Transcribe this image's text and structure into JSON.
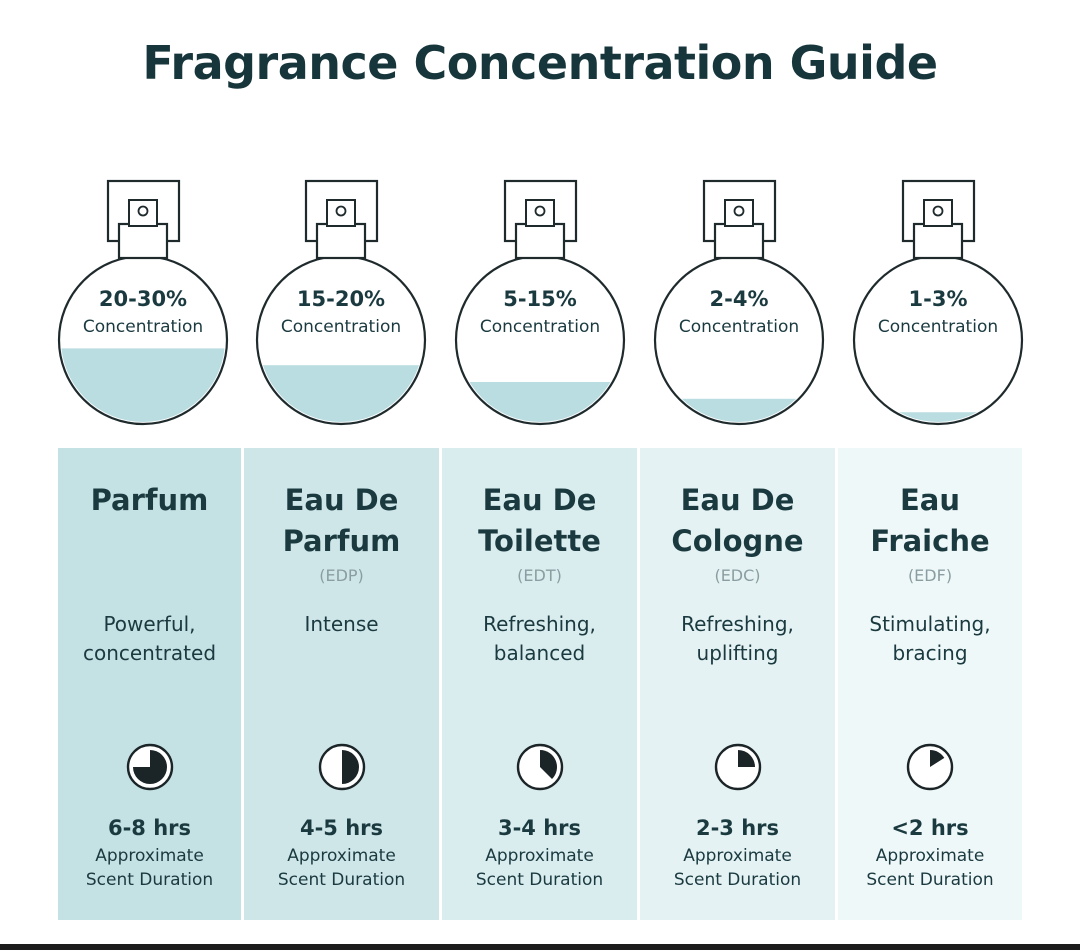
{
  "title": "Fragrance Concentration Guide",
  "colors": {
    "liquid": "#b9dde1",
    "bottle_stroke": "#1f2a2d",
    "panels": [
      "#c4e1e4",
      "#cfe6e9",
      "#d9ecee",
      "#e4f2f3",
      "#eff8f9"
    ]
  },
  "items": [
    {
      "concentration": "20-30%",
      "concentration_label": "Concentration",
      "fill_level": 0.45,
      "name_line1": "Parfum",
      "name_line2": "",
      "abbr": "",
      "desc_line1": "Powerful,",
      "desc_line2": "concentrated",
      "clock_fraction": 0.75,
      "clock_icon": "clock-icon",
      "hours": "6-8 hrs",
      "duration_line1": "Approximate",
      "duration_line2": "Scent Duration"
    },
    {
      "concentration": "15-20%",
      "concentration_label": "Concentration",
      "fill_level": 0.35,
      "name_line1": "Eau De",
      "name_line2": "Parfum",
      "abbr": "(EDP)",
      "desc_line1": "Intense",
      "desc_line2": "",
      "clock_fraction": 0.5,
      "clock_icon": "clock-icon",
      "hours": "4-5 hrs",
      "duration_line1": "Approximate",
      "duration_line2": "Scent Duration"
    },
    {
      "concentration": "5-15%",
      "concentration_label": "Concentration",
      "fill_level": 0.25,
      "name_line1": "Eau De",
      "name_line2": "Toilette",
      "abbr": "(EDT)",
      "desc_line1": "Refreshing,",
      "desc_line2": "balanced",
      "clock_fraction": 0.375,
      "clock_icon": "clock-icon",
      "hours": "3-4 hrs",
      "duration_line1": "Approximate",
      "duration_line2": "Scent Duration"
    },
    {
      "concentration": "2-4%",
      "concentration_label": "Concentration",
      "fill_level": 0.15,
      "name_line1": "Eau De",
      "name_line2": "Cologne",
      "abbr": "(EDC)",
      "desc_line1": "Refreshing,",
      "desc_line2": "uplifting",
      "clock_fraction": 0.25,
      "clock_icon": "clock-icon",
      "hours": "2-3 hrs",
      "duration_line1": "Approximate",
      "duration_line2": "Scent Duration"
    },
    {
      "concentration": "1-3%",
      "concentration_label": "Concentration",
      "fill_level": 0.07,
      "name_line1": "Eau",
      "name_line2": "Fraiche",
      "abbr": "(EDF)",
      "desc_line1": "Stimulating,",
      "desc_line2": "bracing",
      "clock_fraction": 0.16,
      "clock_icon": "clock-icon",
      "hours": "<2 hrs",
      "duration_line1": "Approximate",
      "duration_line2": "Scent Duration"
    }
  ]
}
